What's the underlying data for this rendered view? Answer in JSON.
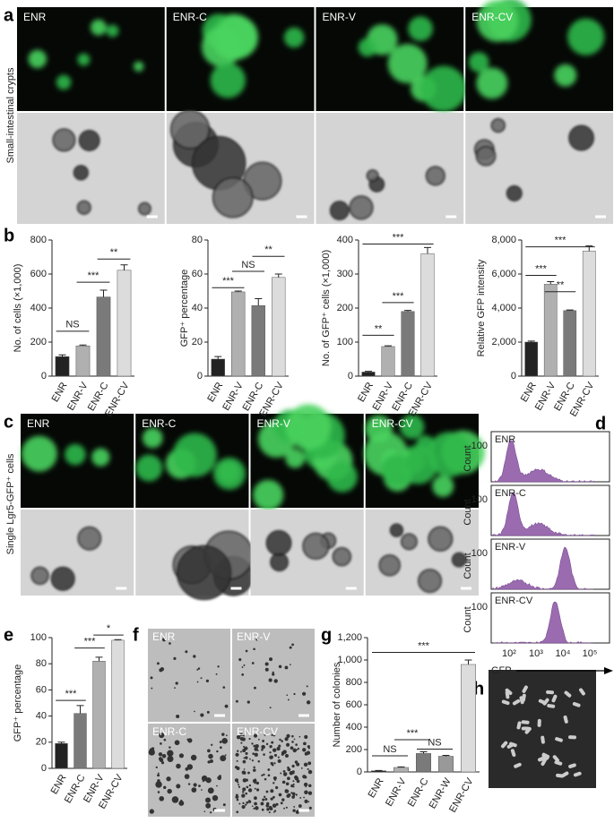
{
  "panels": {
    "a": {
      "letter": "a",
      "side_label": "Small-intestinal crypts",
      "images": [
        "ENR",
        "ENR-C",
        "ENR-V",
        "ENR-CV"
      ]
    },
    "b": {
      "letter": "b"
    },
    "c": {
      "letter": "c",
      "side_label": "Single Lgr5-GFP⁺ cells",
      "images": [
        "ENR",
        "ENR-C",
        "ENR-V",
        "ENR-CV"
      ]
    },
    "d": {
      "letter": "d",
      "panels": [
        "ENR",
        "ENR-C",
        "ENR-V",
        "ENR-CV"
      ],
      "ylabel": "Count",
      "ytick": "100",
      "xticks": [
        "10²",
        "10³",
        "10⁴",
        "10⁵"
      ],
      "xlabel": "GFP"
    },
    "e": {
      "letter": "e"
    },
    "f": {
      "letter": "f",
      "images": [
        "ENR",
        "ENR-V",
        "ENR-C",
        "ENR-CV"
      ]
    },
    "g": {
      "letter": "g"
    },
    "h": {
      "letter": "h"
    }
  },
  "chart_data": [
    {
      "type": "bar",
      "ylabel": "No. of cells (×1,000)",
      "categories": [
        "ENR",
        "ENR-V",
        "ENR-C",
        "ENR-CV"
      ],
      "values": [
        115,
        178,
        465,
        622
      ],
      "errors": [
        10,
        5,
        40,
        32
      ],
      "colors": [
        "#222222",
        "#b0b0b0",
        "#7a7a7a",
        "#dcdcdc"
      ],
      "ylim": [
        0,
        800
      ],
      "yticks": [
        0,
        200,
        400,
        600,
        800
      ],
      "annotations": [
        "NS",
        "***",
        "**"
      ]
    },
    {
      "type": "bar",
      "ylabel": "GFP⁺ percentage",
      "categories": [
        "ENR",
        "ENR-V",
        "ENR-C",
        "ENR-CV"
      ],
      "values": [
        10,
        49.5,
        41.5,
        58
      ],
      "errors": [
        1.5,
        0.5,
        4,
        2
      ],
      "colors": [
        "#222222",
        "#b0b0b0",
        "#7a7a7a",
        "#dcdcdc"
      ],
      "ylim": [
        0,
        80
      ],
      "yticks": [
        0,
        20,
        40,
        60,
        80
      ],
      "annotations": [
        "***",
        "NS",
        "**"
      ]
    },
    {
      "type": "bar",
      "ylabel": "No. of GFP⁺ cells (×1,000)",
      "categories": [
        "ENR",
        "ENR-V",
        "ENR-C",
        "ENR-CV"
      ],
      "values": [
        12,
        87,
        190,
        360
      ],
      "errors": [
        2,
        2,
        3,
        18
      ],
      "colors": [
        "#222222",
        "#b0b0b0",
        "#7a7a7a",
        "#dcdcdc"
      ],
      "ylim": [
        0,
        400
      ],
      "yticks": [
        0,
        100,
        200,
        300,
        400
      ],
      "annotations": [
        "**",
        "***",
        "***"
      ]
    },
    {
      "type": "bar",
      "ylabel": "Relative GFP intensity",
      "categories": [
        "ENR",
        "ENR-V",
        "ENR-C",
        "ENR-CV"
      ],
      "values": [
        2000,
        5400,
        3850,
        7350
      ],
      "errors": [
        60,
        150,
        40,
        300
      ],
      "colors": [
        "#222222",
        "#b0b0b0",
        "#7a7a7a",
        "#dcdcdc"
      ],
      "ylim": [
        0,
        8000
      ],
      "yticks": [
        0,
        {
          "value": 2000,
          "label": "2,000"
        },
        {
          "value": 4000,
          "label": "4,000"
        },
        {
          "value": 6000,
          "label": "6,000"
        },
        {
          "value": 8000,
          "label": "8,000"
        }
      ],
      "annotations": [
        "***",
        "**",
        "***"
      ]
    },
    {
      "type": "bar",
      "ylabel": "GFP⁺ percentage",
      "categories": [
        "ENR",
        "ENR-C",
        "ENR-V",
        "ENR-CV"
      ],
      "values": [
        19,
        42,
        82,
        98
      ],
      "errors": [
        1,
        6,
        3,
        0.5
      ],
      "colors": [
        "#222222",
        "#7a7a7a",
        "#b0b0b0",
        "#dcdcdc"
      ],
      "ylim": [
        0,
        100
      ],
      "yticks": [
        0,
        20,
        40,
        60,
        80,
        100
      ],
      "annotations": [
        "***",
        "***",
        "*"
      ]
    },
    {
      "type": "bar",
      "ylabel": "Number of colonies",
      "categories": [
        "ENR",
        "ENR-V",
        "ENR-C",
        "ENR-W",
        "ENR-CV"
      ],
      "values": [
        10,
        40,
        165,
        140,
        960
      ],
      "errors": [
        3,
        5,
        15,
        8,
        40
      ],
      "colors": [
        "#222222",
        "#b0b0b0",
        "#7a7a7a",
        "#999999",
        "#dcdcdc"
      ],
      "ylim": [
        0,
        1200
      ],
      "yticks": [
        0,
        200,
        400,
        600,
        800,
        {
          "value": 1000,
          "label": "1,000"
        },
        {
          "value": 1200,
          "label": "1,200"
        }
      ],
      "annotations": [
        "NS",
        "***",
        "NS",
        "***"
      ]
    }
  ]
}
